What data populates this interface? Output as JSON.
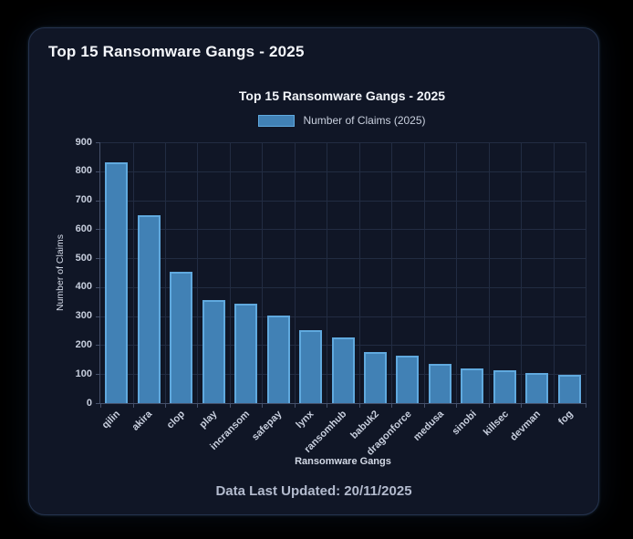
{
  "page_title": "Top 15 Ransomware Gangs - 2025",
  "footer": {
    "text": "Data Last Updated: 20/11/2025"
  },
  "chart_data": {
    "type": "bar",
    "title": "Top 15 Ransomware Gangs - 2025",
    "legend": [
      {
        "label": "Number of Claims (2025)"
      }
    ],
    "legend_position": "top",
    "categories": [
      "qilin",
      "akira",
      "clop",
      "play",
      "incransom",
      "safepay",
      "lynx",
      "ransomhub",
      "babuk2",
      "dragonforce",
      "medusa",
      "sinobi",
      "killsec",
      "devman",
      "fog"
    ],
    "values": [
      830,
      648,
      452,
      356,
      342,
      302,
      252,
      228,
      176,
      164,
      135,
      119,
      113,
      103,
      98
    ],
    "xlabel": "Ransomware Gangs",
    "ylabel": "Number of Claims",
    "ylim": [
      0,
      900
    ],
    "yticks": [
      0,
      100,
      200,
      300,
      400,
      500,
      600,
      700,
      800,
      900
    ],
    "grid": true
  },
  "colors": {
    "page_bg": "#000000",
    "card_bg": "#101626",
    "card_border": "#25334e",
    "bar_fill": "#4181b5",
    "bar_border": "#60a9de",
    "grid_line": "#222c42",
    "axis_line": "#45506a",
    "tick_label": "#c7cedd",
    "axis_title": "#d3d9e6",
    "chart_title": "#f2f5fa",
    "page_title": "#f5f7fb",
    "legend_label": "#c9d0de",
    "footer_text": "#b3bbce"
  }
}
